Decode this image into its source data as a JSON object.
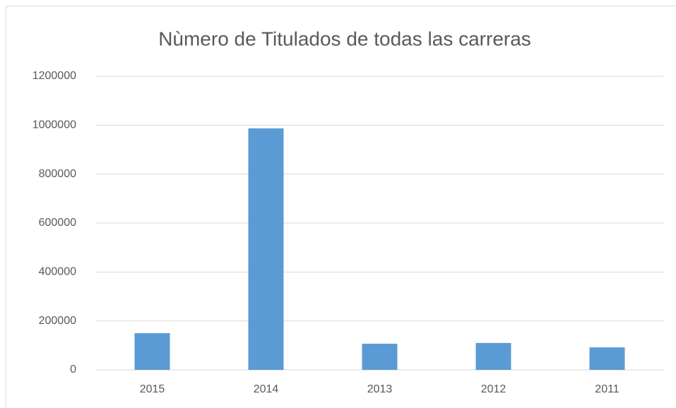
{
  "chart_data": {
    "type": "bar",
    "title": "Nùmero de Titulados de todas las carreras",
    "categories": [
      "2015",
      "2014",
      "2013",
      "2012",
      "2011"
    ],
    "values": [
      150000,
      987000,
      107000,
      110000,
      92000
    ],
    "color": "#5b9bd5",
    "ylim": [
      0,
      1200000
    ],
    "yticks": [
      0,
      200000,
      400000,
      600000,
      800000,
      1000000,
      1200000
    ],
    "grid": true
  }
}
